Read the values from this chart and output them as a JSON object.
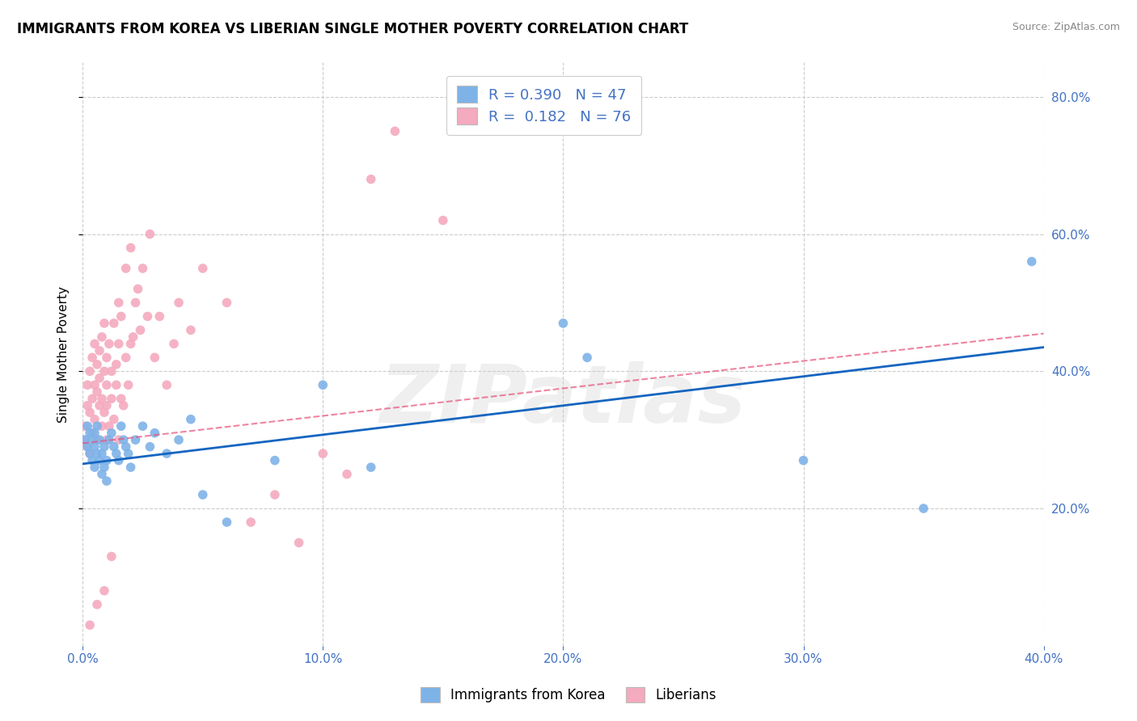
{
  "title": "IMMIGRANTS FROM KOREA VS LIBERIAN SINGLE MOTHER POVERTY CORRELATION CHART",
  "source": "Source: ZipAtlas.com",
  "ylabel": "Single Mother Poverty",
  "legend_korea": "Immigrants from Korea",
  "legend_liberia": "Liberians",
  "R_korea": 0.39,
  "N_korea": 47,
  "R_liberia": 0.182,
  "N_liberia": 76,
  "xmin": 0.0,
  "xmax": 0.4,
  "ymin": 0.0,
  "ymax": 0.85,
  "korea_color": "#7EB3E8",
  "liberia_color": "#F4AABF",
  "korea_line_color": "#1565C0",
  "liberia_line_color": "#E8507A",
  "watermark_text": "ZIPatlas",
  "korea_scatter_x": [
    0.001,
    0.002,
    0.002,
    0.003,
    0.003,
    0.004,
    0.004,
    0.005,
    0.005,
    0.005,
    0.006,
    0.006,
    0.007,
    0.007,
    0.008,
    0.008,
    0.009,
    0.009,
    0.01,
    0.01,
    0.011,
    0.012,
    0.013,
    0.014,
    0.015,
    0.016,
    0.017,
    0.018,
    0.019,
    0.02,
    0.022,
    0.025,
    0.028,
    0.03,
    0.035,
    0.04,
    0.045,
    0.05,
    0.06,
    0.08,
    0.1,
    0.12,
    0.2,
    0.21,
    0.3,
    0.35,
    0.395
  ],
  "korea_scatter_y": [
    0.3,
    0.29,
    0.32,
    0.28,
    0.31,
    0.27,
    0.3,
    0.26,
    0.29,
    0.31,
    0.28,
    0.32,
    0.27,
    0.3,
    0.25,
    0.28,
    0.26,
    0.29,
    0.27,
    0.24,
    0.3,
    0.31,
    0.29,
    0.28,
    0.27,
    0.32,
    0.3,
    0.29,
    0.28,
    0.26,
    0.3,
    0.32,
    0.29,
    0.31,
    0.28,
    0.3,
    0.33,
    0.22,
    0.18,
    0.27,
    0.38,
    0.26,
    0.47,
    0.42,
    0.27,
    0.2,
    0.56
  ],
  "liberia_scatter_x": [
    0.001,
    0.001,
    0.002,
    0.002,
    0.002,
    0.003,
    0.003,
    0.003,
    0.004,
    0.004,
    0.004,
    0.005,
    0.005,
    0.005,
    0.006,
    0.006,
    0.006,
    0.007,
    0.007,
    0.007,
    0.008,
    0.008,
    0.008,
    0.009,
    0.009,
    0.009,
    0.01,
    0.01,
    0.01,
    0.01,
    0.011,
    0.011,
    0.012,
    0.012,
    0.013,
    0.013,
    0.014,
    0.014,
    0.015,
    0.015,
    0.016,
    0.016,
    0.017,
    0.018,
    0.019,
    0.02,
    0.022,
    0.024,
    0.025,
    0.028,
    0.03,
    0.032,
    0.035,
    0.038,
    0.04,
    0.045,
    0.05,
    0.06,
    0.07,
    0.08,
    0.09,
    0.1,
    0.11,
    0.12,
    0.13,
    0.15,
    0.02,
    0.018,
    0.015,
    0.012,
    0.009,
    0.006,
    0.003,
    0.021,
    0.023,
    0.027
  ],
  "liberia_scatter_y": [
    0.3,
    0.32,
    0.35,
    0.29,
    0.38,
    0.34,
    0.4,
    0.28,
    0.36,
    0.31,
    0.42,
    0.38,
    0.33,
    0.44,
    0.37,
    0.41,
    0.3,
    0.43,
    0.35,
    0.39,
    0.36,
    0.45,
    0.32,
    0.4,
    0.47,
    0.34,
    0.38,
    0.42,
    0.3,
    0.35,
    0.44,
    0.32,
    0.4,
    0.36,
    0.47,
    0.33,
    0.41,
    0.38,
    0.44,
    0.3,
    0.36,
    0.48,
    0.35,
    0.42,
    0.38,
    0.44,
    0.5,
    0.46,
    0.55,
    0.6,
    0.42,
    0.48,
    0.38,
    0.44,
    0.5,
    0.46,
    0.55,
    0.5,
    0.18,
    0.22,
    0.15,
    0.28,
    0.25,
    0.68,
    0.75,
    0.62,
    0.58,
    0.55,
    0.5,
    0.13,
    0.08,
    0.06,
    0.03,
    0.45,
    0.52,
    0.48
  ],
  "xticks": [
    0.0,
    0.1,
    0.2,
    0.3,
    0.4
  ],
  "yticks": [
    0.2,
    0.4,
    0.6,
    0.8
  ]
}
